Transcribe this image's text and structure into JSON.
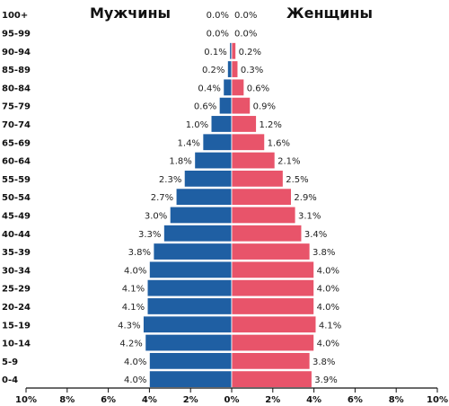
{
  "chart_data": {
    "type": "bar",
    "orientation": "horizontal",
    "male_label": "Мужчины",
    "female_label": "Женщины",
    "categories": [
      "100+",
      "95-99",
      "90-94",
      "85-89",
      "80-84",
      "75-79",
      "70-74",
      "65-69",
      "60-64",
      "55-59",
      "50-54",
      "45-49",
      "40-44",
      "35-39",
      "30-34",
      "25-29",
      "20-24",
      "15-19",
      "10-14",
      "5-9",
      "0-4"
    ],
    "series": [
      {
        "name": "Мужчины",
        "values": [
          0.0,
          0.0,
          0.1,
          0.2,
          0.4,
          0.6,
          1.0,
          1.4,
          1.8,
          2.3,
          2.7,
          3.0,
          3.3,
          3.8,
          4.0,
          4.1,
          4.1,
          4.3,
          4.2,
          4.0,
          4.0
        ],
        "labels": [
          "0.0%",
          "0.0%",
          "0.1%",
          "0.2%",
          "0.4%",
          "0.6%",
          "1.0%",
          "1.4%",
          "1.8%",
          "2.3%",
          "2.7%",
          "3.0%",
          "3.3%",
          "3.8%",
          "4.0%",
          "4.1%",
          "4.1%",
          "4.3%",
          "4.2%",
          "4.0%",
          "4.0%"
        ]
      },
      {
        "name": "Женщины",
        "values": [
          0.0,
          0.0,
          0.2,
          0.3,
          0.6,
          0.9,
          1.2,
          1.6,
          2.1,
          2.5,
          2.9,
          3.1,
          3.4,
          3.8,
          4.0,
          4.0,
          4.0,
          4.1,
          4.0,
          3.8,
          3.9
        ],
        "labels": [
          "0.0%",
          "0.0%",
          "0.2%",
          "0.3%",
          "0.6%",
          "0.9%",
          "1.2%",
          "1.6%",
          "2.1%",
          "2.5%",
          "2.9%",
          "3.1%",
          "3.4%",
          "3.8%",
          "4.0%",
          "4.0%",
          "4.0%",
          "4.1%",
          "4.0%",
          "3.8%",
          "3.9%"
        ]
      }
    ],
    "x_ticks": [
      "10%",
      "8%",
      "6%",
      "4%",
      "2%",
      "0%",
      "2%",
      "4%",
      "6%",
      "8%",
      "10%"
    ],
    "xlim": [
      -10,
      10
    ],
    "colors": {
      "male": "#1f5fa3",
      "female": "#e8546a",
      "axis": "#111111"
    },
    "grid": false
  }
}
